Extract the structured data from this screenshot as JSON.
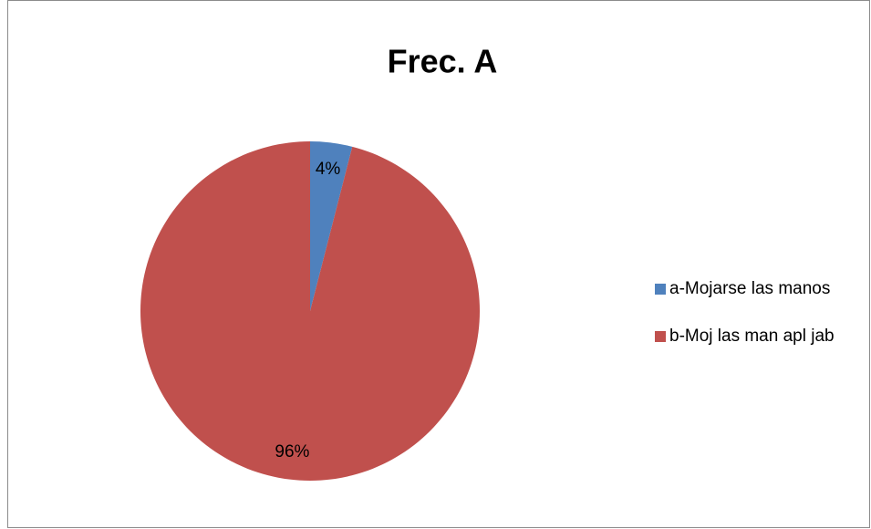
{
  "chart_data": {
    "type": "pie",
    "title": "Frec. A",
    "categories": [
      "a-Mojarse las manos",
      "b-Moj las man apl jab"
    ],
    "values": [
      4,
      96
    ],
    "value_labels": [
      "4%",
      "96%"
    ],
    "colors": [
      "#4f81bd",
      "#c0504d"
    ],
    "legend": "right"
  }
}
